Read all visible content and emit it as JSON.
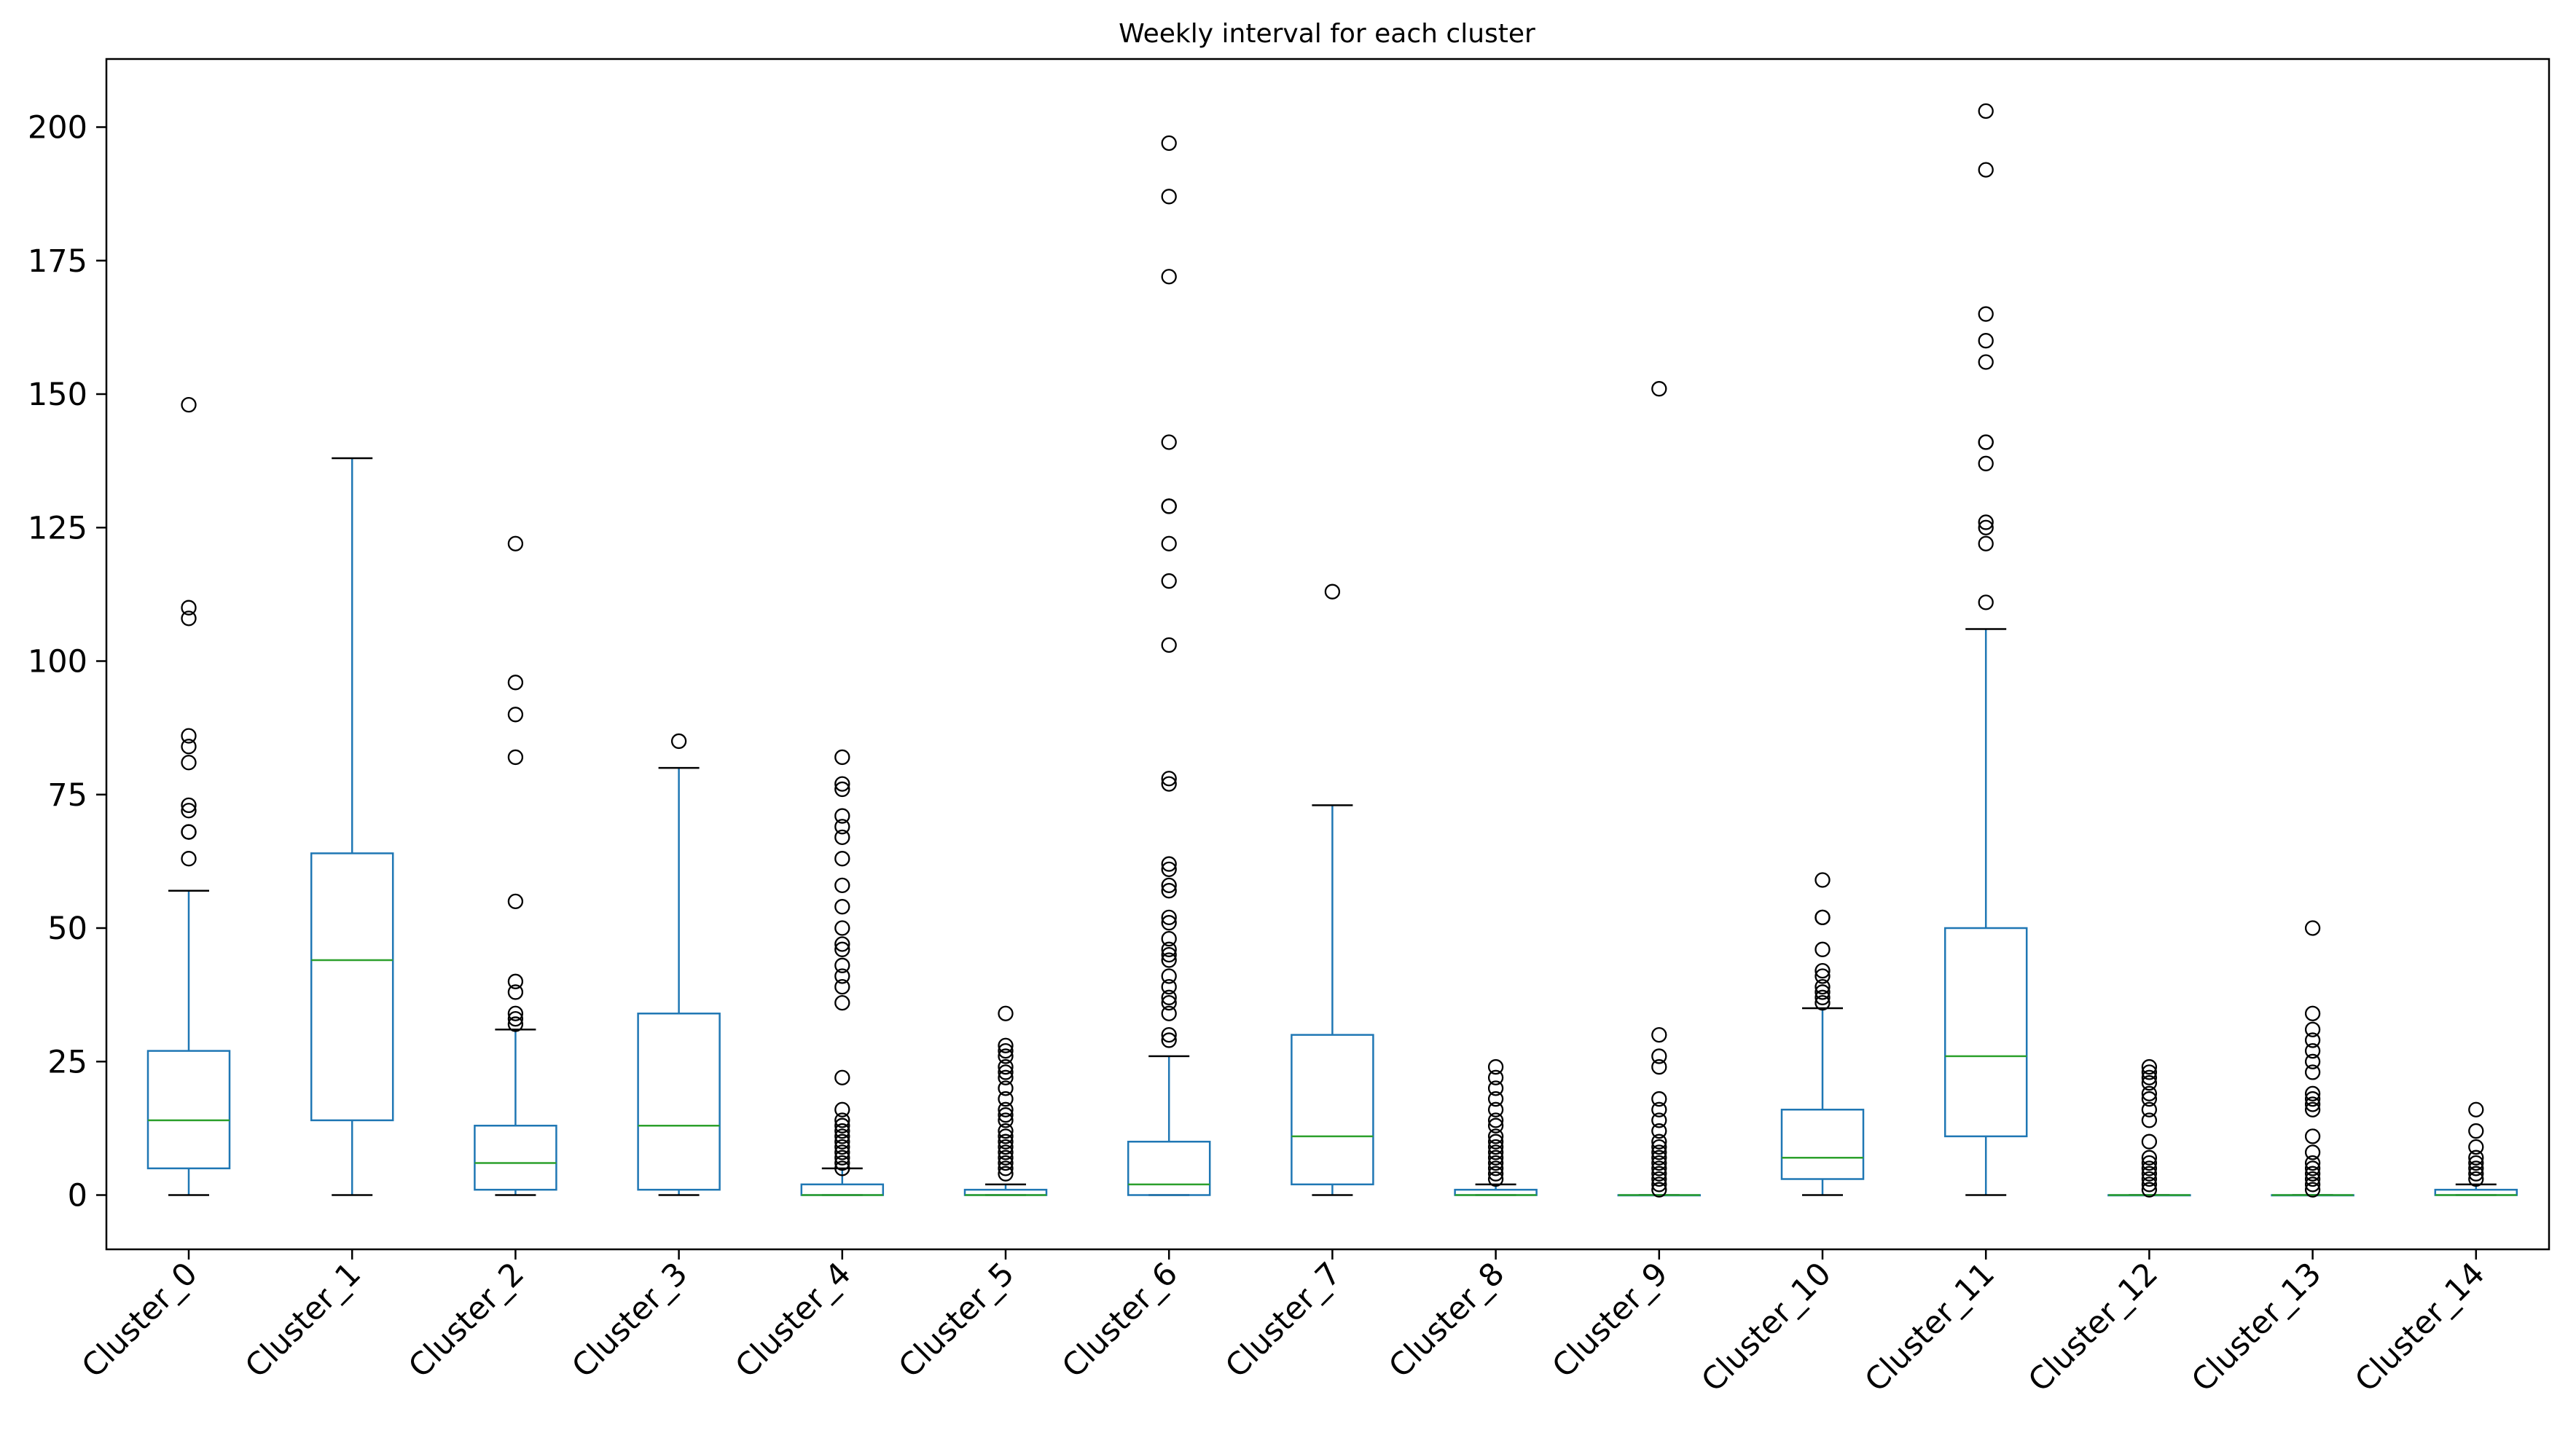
{
  "chart_data": {
    "type": "box",
    "title": "Weekly interval for each cluster",
    "xlabel": "",
    "ylabel": "",
    "ylim": [
      -10,
      212
    ],
    "yticks": [
      0,
      25,
      50,
      75,
      100,
      125,
      150,
      175,
      200
    ],
    "ytick_labels": [
      "0",
      "25",
      "50",
      "75",
      "100",
      "125",
      "150",
      "175",
      "200"
    ],
    "grid": false,
    "colors": {
      "box": "#1f77b4",
      "median": "#2ca02c",
      "outlier": "#000000",
      "cap": "#000000",
      "axis": "#000000"
    },
    "categories": [
      "Cluster_0",
      "Cluster_1",
      "Cluster_2",
      "Cluster_3",
      "Cluster_4",
      "Cluster_5",
      "Cluster_6",
      "Cluster_7",
      "Cluster_8",
      "Cluster_9",
      "Cluster_10",
      "Cluster_11",
      "Cluster_12",
      "Cluster_13",
      "Cluster_14"
    ],
    "boxes": [
      {
        "name": "Cluster_0",
        "whislo": 0,
        "q1": 5,
        "med": 14,
        "q3": 27,
        "whishi": 57,
        "fliers": [
          63,
          68,
          68,
          72,
          73,
          81,
          84,
          86,
          108,
          110,
          148
        ]
      },
      {
        "name": "Cluster_1",
        "whislo": 0,
        "q1": 14,
        "med": 44,
        "q3": 64,
        "whishi": 138,
        "fliers": []
      },
      {
        "name": "Cluster_2",
        "whislo": 0,
        "q1": 1,
        "med": 6,
        "q3": 13,
        "whishi": 31,
        "fliers": [
          32,
          33,
          34,
          38,
          40,
          55,
          82,
          90,
          96,
          122
        ]
      },
      {
        "name": "Cluster_3",
        "whislo": 0,
        "q1": 1,
        "med": 13,
        "q3": 34,
        "whishi": 80,
        "fliers": [
          85
        ]
      },
      {
        "name": "Cluster_4",
        "whislo": 0,
        "q1": 0,
        "med": 0,
        "q3": 2,
        "whishi": 5,
        "fliers": [
          5,
          6,
          7,
          8,
          9,
          10,
          11,
          12,
          13,
          14,
          16,
          22,
          36,
          39,
          41,
          43,
          46,
          47,
          50,
          54,
          58,
          63,
          67,
          69,
          71,
          76,
          77,
          82
        ]
      },
      {
        "name": "Cluster_5",
        "whislo": 0,
        "q1": 0,
        "med": 0,
        "q3": 1,
        "whishi": 2,
        "fliers": [
          4,
          5,
          6,
          7,
          8,
          9,
          10,
          11,
          12,
          14,
          15,
          16,
          18,
          20,
          22,
          23,
          24,
          26,
          27,
          28,
          34
        ]
      },
      {
        "name": "Cluster_6",
        "whislo": 0,
        "q1": 0,
        "med": 2,
        "q3": 10,
        "whishi": 26,
        "fliers": [
          29,
          30,
          34,
          36,
          37,
          39,
          41,
          44,
          45,
          46,
          48,
          51,
          52,
          57,
          58,
          61,
          62,
          77,
          78,
          103,
          115,
          122,
          129,
          129,
          141,
          172,
          187,
          197
        ]
      },
      {
        "name": "Cluster_7",
        "whislo": 0,
        "q1": 2,
        "med": 11,
        "q3": 30,
        "whishi": 73,
        "fliers": [
          113
        ]
      },
      {
        "name": "Cluster_8",
        "whislo": 0,
        "q1": 0,
        "med": 0,
        "q3": 1,
        "whishi": 2,
        "fliers": [
          3,
          4,
          5,
          6,
          7,
          8,
          9,
          10,
          11,
          13,
          14,
          16,
          18,
          20,
          22,
          24
        ]
      },
      {
        "name": "Cluster_9",
        "whislo": 0,
        "q1": 0,
        "med": 0,
        "q3": 0,
        "whishi": 0,
        "fliers": [
          1,
          2,
          3,
          4,
          5,
          6,
          7,
          8,
          9,
          10,
          12,
          14,
          16,
          18,
          24,
          26,
          30,
          151
        ]
      },
      {
        "name": "Cluster_10",
        "whislo": 0,
        "q1": 3,
        "med": 7,
        "q3": 16,
        "whishi": 35,
        "fliers": [
          36,
          37,
          38,
          39,
          41,
          42,
          46,
          52,
          52,
          59
        ]
      },
      {
        "name": "Cluster_11",
        "whislo": 0,
        "q1": 11,
        "med": 26,
        "q3": 50,
        "whishi": 106,
        "fliers": [
          111,
          122,
          125,
          126,
          137,
          141,
          141,
          156,
          160,
          165,
          192,
          203
        ]
      },
      {
        "name": "Cluster_12",
        "whislo": 0,
        "q1": 0,
        "med": 0,
        "q3": 0,
        "whishi": 0,
        "fliers": [
          1,
          2,
          3,
          4,
          5,
          6,
          7,
          10,
          14,
          16,
          18,
          19,
          21,
          22,
          23,
          24
        ]
      },
      {
        "name": "Cluster_13",
        "whislo": 0,
        "q1": 0,
        "med": 0,
        "q3": 0,
        "whishi": 0,
        "fliers": [
          1,
          2,
          3,
          4,
          5,
          6,
          8,
          11,
          16,
          17,
          18,
          19,
          23,
          25,
          27,
          29,
          31,
          34,
          50
        ]
      },
      {
        "name": "Cluster_14",
        "whislo": 0,
        "q1": 0,
        "med": 0,
        "q3": 1,
        "whishi": 2,
        "fliers": [
          3,
          4,
          5,
          6,
          7,
          9,
          12,
          16
        ]
      }
    ]
  }
}
